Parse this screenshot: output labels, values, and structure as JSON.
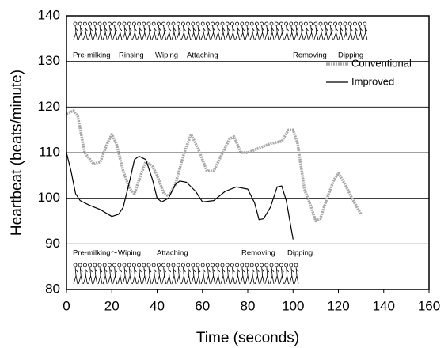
{
  "chart_data": {
    "type": "line",
    "x_label": "Time (seconds)",
    "y_label": "Heartbeat (beats/minute)",
    "xlim": [
      0,
      160
    ],
    "xticks": [
      0,
      20,
      40,
      60,
      80,
      100,
      120,
      140,
      160
    ],
    "ylim": [
      80,
      140
    ],
    "yticks": [
      80,
      90,
      100,
      110,
      120,
      130,
      140
    ],
    "grid": true,
    "legend": "upper right",
    "annotations_top": [
      "Pre-milking",
      "Rinsing",
      "Wiping",
      "Attaching",
      "Removing",
      "Dipping"
    ],
    "annotations_bottom": [
      "Pre-milking～Wiping",
      "Attaching",
      "Removing",
      "Dipping"
    ],
    "series": [
      {
        "name": "Conventional",
        "color": "#a8a8a8",
        "x": [
          0,
          3,
          5,
          8,
          12,
          15,
          18,
          20,
          22,
          25,
          28,
          30,
          32,
          35,
          38,
          40,
          43,
          45,
          48,
          52,
          55,
          58,
          62,
          65,
          68,
          72,
          74,
          77,
          80,
          85,
          90,
          95,
          98,
          100,
          102,
          105,
          108,
          110,
          112,
          115,
          118,
          120,
          123,
          126,
          130
        ],
        "values": [
          118.5,
          119.2,
          118,
          110,
          107.5,
          108,
          112,
          114,
          112,
          106,
          102,
          101,
          104,
          108,
          107,
          105,
          101,
          100.5,
          103,
          110,
          114,
          111,
          106,
          106,
          109,
          113,
          113.5,
          110,
          110,
          111,
          112,
          112.5,
          115,
          115,
          112,
          102,
          98,
          95,
          95.5,
          100,
          104,
          105.5,
          103,
          100,
          96.5
        ]
      },
      {
        "name": "Improved",
        "color": "#000000",
        "x": [
          0,
          2,
          4,
          6,
          10,
          15,
          20,
          23,
          25,
          28,
          30,
          32,
          35,
          38,
          40,
          42,
          45,
          48,
          50,
          53,
          57,
          60,
          65,
          70,
          75,
          80,
          83,
          85,
          87,
          90,
          93,
          95,
          97,
          100
        ],
        "values": [
          110,
          106,
          101,
          99.5,
          98.5,
          97.5,
          96,
          96.5,
          98,
          104,
          108.5,
          109.2,
          108.5,
          104,
          100,
          99.2,
          100,
          103,
          103.8,
          103.5,
          101.5,
          99.2,
          99.5,
          101.5,
          102.5,
          102,
          99,
          95.3,
          95.5,
          98,
          102.5,
          102.7,
          99.5,
          91
        ]
      }
    ]
  }
}
